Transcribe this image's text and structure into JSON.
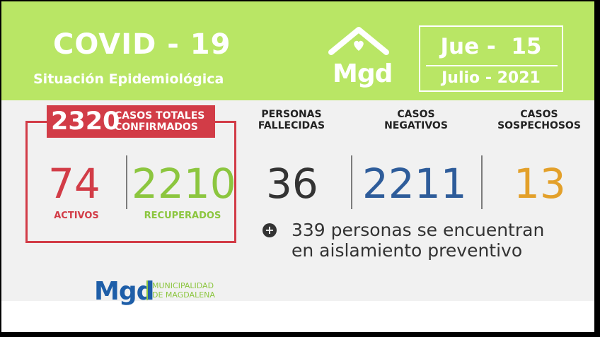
{
  "header": {
    "title": "COVID - 19",
    "subtitle": "Situación Epidemiológica",
    "logo_text": "Mgd",
    "date_day": "Jue -  15",
    "date_month": "Julio - 2021"
  },
  "confirmed": {
    "value": "2320",
    "label_line1": "CASOS TOTALES",
    "label_line2": "CONFIRMADOS"
  },
  "activos": {
    "value": "74",
    "label": "ACTIVOS"
  },
  "recuperados": {
    "value": "2210",
    "label": "RECUPERADOS"
  },
  "fallecidos": {
    "label": "PERSONAS\nFALLECIDAS",
    "value": "36"
  },
  "negativos": {
    "label": "CASOS\nNEGATIVOS",
    "value": "2211"
  },
  "sospechosos": {
    "label": "CASOS\nSOSPECHOSOS",
    "value": "13"
  },
  "note": {
    "icon": "+",
    "line1": "339 personas se encuentran",
    "line2": "en aislamiento preventivo"
  },
  "footer": {
    "logo_text": "Mgd",
    "org_line1": "MUNICIPALIDAD",
    "org_line2": "DE MAGDALENA"
  },
  "colors": {
    "header_green": "#b9e665",
    "red": "#d23c47",
    "green": "#8cc63f",
    "blue": "#2e5c9a",
    "orange": "#e3a02a",
    "dark": "#333333"
  }
}
